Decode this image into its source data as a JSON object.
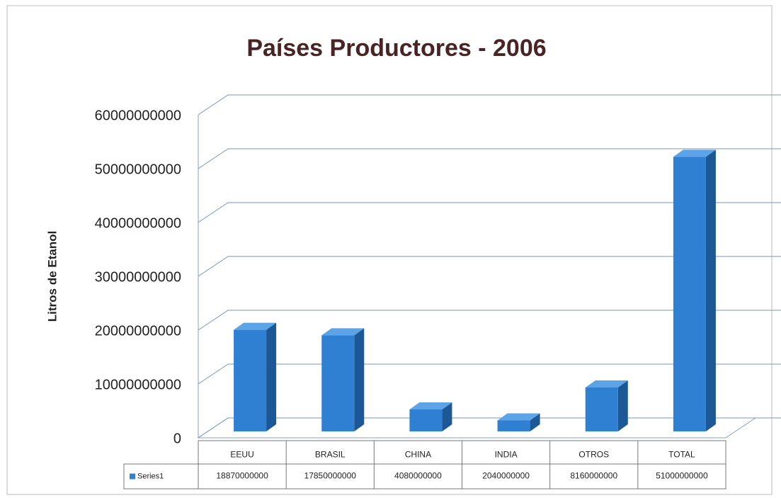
{
  "chart_data": {
    "type": "bar3d",
    "title": "Países Productores - 2006",
    "y_label": "Litros de Etanol",
    "categories": [
      "EEUU",
      "BRASIL",
      "CHINA",
      "INDIA",
      "OTROS",
      "TOTAL"
    ],
    "series": [
      {
        "name": "Series1",
        "color": "#2f80d2",
        "values": [
          18870000000,
          17850000000,
          4080000000,
          2040000000,
          8160000000,
          51000000000
        ]
      }
    ],
    "ylim": [
      0,
      60000000000
    ],
    "yticks": [
      0,
      10000000000,
      20000000000,
      30000000000,
      40000000000,
      50000000000,
      60000000000
    ],
    "grid": true,
    "data_table": true
  }
}
